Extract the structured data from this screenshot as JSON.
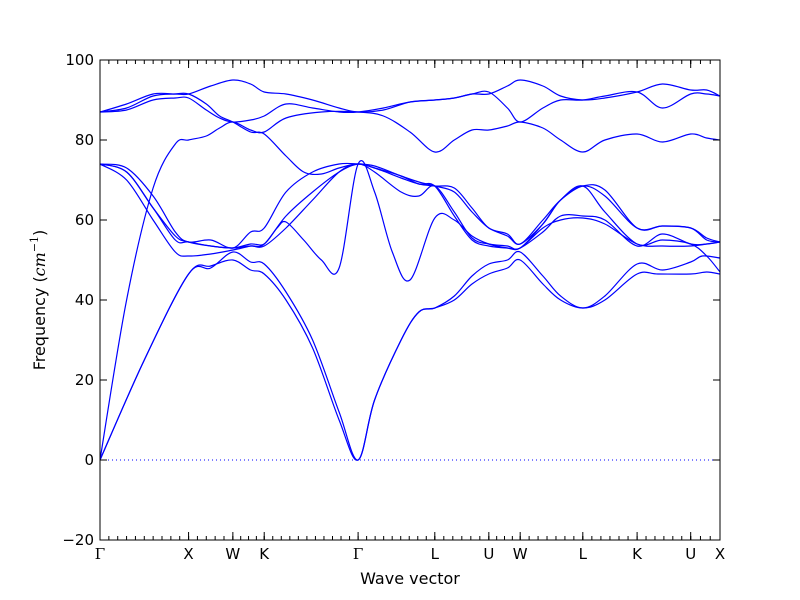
{
  "chart_data": {
    "type": "line",
    "title": "",
    "xlabel": "Wave vector",
    "ylabel": "Frequency",
    "ylabel_unit": "cm",
    "ylabel_unit_exp": "−1",
    "ylim": [
      -20,
      100
    ],
    "yticks": [
      "−20",
      "0",
      "20",
      "40",
      "60",
      "80",
      "100"
    ],
    "ytick_values": [
      -20,
      0,
      20,
      40,
      60,
      80,
      100
    ],
    "xlim": [
      0,
      7.0
    ],
    "xticks": [
      {
        "label": "Γ",
        "x": 0.0
      },
      {
        "label": "X",
        "x": 1.0
      },
      {
        "label": "W",
        "x": 1.5
      },
      {
        "label": "K",
        "x": 1.854
      },
      {
        "label": "Γ",
        "x": 2.914
      },
      {
        "label": "L",
        "x": 3.78
      },
      {
        "label": "U",
        "x": 4.39
      },
      {
        "label": "W",
        "x": 4.744
      },
      {
        "label": "L",
        "x": 5.451
      },
      {
        "label": "K",
        "x": 6.064
      },
      {
        "label": "U",
        "x": 6.669
      },
      {
        "label": "X",
        "x": 7.0
      }
    ],
    "zero_line": true,
    "line_color": "#0000ff",
    "zero_line_color": "#0000ff",
    "series": [
      {
        "values": [
          [
            0,
            0
          ],
          [
            0.5,
            25
          ],
          [
            1.0,
            46.5
          ],
          [
            1.25,
            48.5
          ],
          [
            1.5,
            50
          ],
          [
            1.7,
            47.5
          ],
          [
            1.854,
            46.5
          ],
          [
            2.1,
            40
          ],
          [
            2.4,
            28
          ],
          [
            2.7,
            10
          ],
          [
            2.914,
            0
          ],
          [
            3.1,
            15
          ],
          [
            3.4,
            30
          ],
          [
            3.6,
            37
          ],
          [
            3.78,
            38
          ],
          [
            4.0,
            40
          ],
          [
            4.2,
            44
          ],
          [
            4.39,
            46.5
          ],
          [
            4.6,
            48
          ],
          [
            4.744,
            50
          ],
          [
            5.0,
            44
          ],
          [
            5.2,
            40
          ],
          [
            5.451,
            38
          ],
          [
            5.7,
            40
          ],
          [
            6.064,
            46.5
          ],
          [
            6.3,
            46.5
          ],
          [
            6.669,
            46.5
          ],
          [
            6.85,
            47
          ],
          [
            7.0,
            46.5
          ]
        ]
      },
      {
        "values": [
          [
            0,
            0
          ],
          [
            0.5,
            25
          ],
          [
            1.0,
            46.5
          ],
          [
            1.25,
            48
          ],
          [
            1.5,
            52
          ],
          [
            1.7,
            49.5
          ],
          [
            1.854,
            49
          ],
          [
            2.1,
            42
          ],
          [
            2.4,
            30
          ],
          [
            2.7,
            12
          ],
          [
            2.914,
            0
          ],
          [
            3.1,
            15
          ],
          [
            3.4,
            30
          ],
          [
            3.6,
            37
          ],
          [
            3.78,
            38
          ],
          [
            4.0,
            41
          ],
          [
            4.2,
            46
          ],
          [
            4.39,
            49
          ],
          [
            4.6,
            50
          ],
          [
            4.744,
            52
          ],
          [
            5.0,
            46
          ],
          [
            5.2,
            41
          ],
          [
            5.451,
            38
          ],
          [
            5.7,
            41
          ],
          [
            6.064,
            49
          ],
          [
            6.35,
            47.5
          ],
          [
            6.669,
            49.5
          ],
          [
            6.8,
            51
          ],
          [
            7.0,
            50.5
          ]
        ]
      },
      {
        "values": [
          [
            0,
            0
          ],
          [
            0.3,
            40
          ],
          [
            0.6,
            68
          ],
          [
            0.85,
            79
          ],
          [
            1.0,
            80
          ],
          [
            1.2,
            81
          ],
          [
            1.35,
            83
          ],
          [
            1.5,
            84.5
          ],
          [
            1.7,
            82.5
          ],
          [
            1.854,
            82
          ],
          [
            2.1,
            85.5
          ],
          [
            2.5,
            87
          ],
          [
            2.914,
            87
          ],
          [
            3.2,
            86
          ],
          [
            3.5,
            82
          ],
          [
            3.78,
            77
          ],
          [
            4.0,
            80
          ],
          [
            4.2,
            82.5
          ],
          [
            4.39,
            82.5
          ],
          [
            4.6,
            83.5
          ],
          [
            4.744,
            84.5
          ],
          [
            5.0,
            83
          ],
          [
            5.2,
            80
          ],
          [
            5.451,
            77
          ],
          [
            5.7,
            80
          ],
          [
            6.064,
            81.5
          ],
          [
            6.35,
            79.5
          ],
          [
            6.669,
            81.5
          ],
          [
            6.85,
            80.5
          ],
          [
            7.0,
            80
          ]
        ]
      },
      {
        "values": [
          [
            0,
            74
          ],
          [
            0.3,
            72
          ],
          [
            0.6,
            63
          ],
          [
            0.85,
            55
          ],
          [
            1.0,
            54.5
          ],
          [
            1.25,
            53.5
          ],
          [
            1.5,
            53
          ],
          [
            1.7,
            53.5
          ],
          [
            1.854,
            53.5
          ],
          [
            2.1,
            58
          ],
          [
            2.4,
            65
          ],
          [
            2.7,
            72
          ],
          [
            2.914,
            74
          ],
          [
            3.1,
            72
          ],
          [
            3.4,
            67
          ],
          [
            3.6,
            66
          ],
          [
            3.78,
            68.5
          ],
          [
            4.0,
            62
          ],
          [
            4.2,
            55.5
          ],
          [
            4.39,
            54
          ],
          [
            4.6,
            53.5
          ],
          [
            4.744,
            53
          ],
          [
            5.0,
            59
          ],
          [
            5.2,
            65
          ],
          [
            5.451,
            68.5
          ],
          [
            5.7,
            62
          ],
          [
            6.064,
            54
          ],
          [
            6.35,
            55
          ],
          [
            6.669,
            54
          ],
          [
            6.85,
            51
          ],
          [
            7.0,
            47
          ]
        ]
      },
      {
        "values": [
          [
            0,
            74
          ],
          [
            0.3,
            70
          ],
          [
            0.6,
            60
          ],
          [
            0.85,
            52
          ],
          [
            1.0,
            51
          ],
          [
            1.25,
            51.5
          ],
          [
            1.5,
            52.5
          ],
          [
            1.7,
            53.5
          ],
          [
            1.854,
            54
          ],
          [
            2.1,
            61
          ],
          [
            2.4,
            67
          ],
          [
            2.7,
            72
          ],
          [
            2.914,
            74
          ],
          [
            3.1,
            73
          ],
          [
            3.4,
            71
          ],
          [
            3.6,
            69
          ],
          [
            3.78,
            68.5
          ],
          [
            4.0,
            61
          ],
          [
            4.2,
            55
          ],
          [
            4.39,
            53.5
          ],
          [
            4.6,
            53
          ],
          [
            4.744,
            53
          ],
          [
            5.0,
            57
          ],
          [
            5.2,
            61
          ],
          [
            5.451,
            61
          ],
          [
            5.7,
            60
          ],
          [
            6.064,
            53.5
          ],
          [
            6.35,
            56.5
          ],
          [
            6.669,
            54
          ],
          [
            6.85,
            54
          ],
          [
            7.0,
            54.5
          ]
        ]
      },
      {
        "values": [
          [
            0,
            74
          ],
          [
            0.3,
            73
          ],
          [
            0.6,
            66
          ],
          [
            0.85,
            57
          ],
          [
            1.0,
            54.5
          ],
          [
            1.25,
            55
          ],
          [
            1.5,
            53
          ],
          [
            1.7,
            57
          ],
          [
            1.854,
            58
          ],
          [
            2.1,
            67
          ],
          [
            2.4,
            72
          ],
          [
            2.7,
            74
          ],
          [
            2.914,
            74
          ],
          [
            3.1,
            73.5
          ],
          [
            3.4,
            71
          ],
          [
            3.6,
            69.5
          ],
          [
            3.78,
            68.5
          ],
          [
            4.0,
            67
          ],
          [
            4.2,
            62
          ],
          [
            4.39,
            58
          ],
          [
            4.6,
            56
          ],
          [
            4.744,
            54
          ],
          [
            5.0,
            59
          ],
          [
            5.2,
            65
          ],
          [
            5.451,
            68.5
          ],
          [
            5.7,
            66
          ],
          [
            6.064,
            58
          ],
          [
            6.35,
            58.5
          ],
          [
            6.669,
            58
          ],
          [
            6.85,
            55.5
          ],
          [
            7.0,
            54.5
          ]
        ]
      },
      {
        "values": [
          [
            0,
            74
          ],
          [
            0.3,
            72
          ],
          [
            0.6,
            63
          ],
          [
            0.85,
            56
          ],
          [
            1.0,
            54.5
          ],
          [
            1.25,
            53.5
          ],
          [
            1.5,
            53
          ],
          [
            1.7,
            54
          ],
          [
            1.854,
            54
          ],
          [
            2.0,
            58
          ],
          [
            2.1,
            59.5
          ],
          [
            2.3,
            55
          ],
          [
            2.5,
            50
          ],
          [
            2.7,
            48
          ],
          [
            2.914,
            74
          ],
          [
            3.1,
            67
          ],
          [
            3.3,
            52
          ],
          [
            3.5,
            45
          ],
          [
            3.78,
            60.5
          ],
          [
            4.0,
            60
          ],
          [
            4.2,
            56
          ],
          [
            4.39,
            54
          ],
          [
            4.6,
            53
          ],
          [
            4.744,
            53
          ],
          [
            5.0,
            58
          ],
          [
            5.2,
            60
          ],
          [
            5.451,
            60.5
          ],
          [
            5.7,
            59
          ],
          [
            6.064,
            54
          ],
          [
            6.35,
            53.5
          ],
          [
            6.669,
            53.5
          ],
          [
            6.85,
            54
          ],
          [
            7.0,
            54.5
          ]
        ]
      },
      {
        "values": [
          [
            0,
            87
          ],
          [
            0.3,
            88
          ],
          [
            0.6,
            91
          ],
          [
            0.85,
            91.5
          ],
          [
            1.0,
            91.5
          ],
          [
            1.2,
            89
          ],
          [
            1.35,
            86
          ],
          [
            1.5,
            84.5
          ],
          [
            1.7,
            82
          ],
          [
            1.854,
            81.5
          ],
          [
            2.1,
            76
          ],
          [
            2.3,
            72
          ],
          [
            2.5,
            71.5
          ],
          [
            2.7,
            73
          ],
          [
            2.914,
            74
          ],
          [
            3.1,
            73
          ],
          [
            3.4,
            70.5
          ],
          [
            3.6,
            69
          ],
          [
            3.78,
            68.5
          ],
          [
            4.0,
            68
          ],
          [
            4.2,
            63
          ],
          [
            4.39,
            58
          ],
          [
            4.6,
            56.5
          ],
          [
            4.744,
            54
          ],
          [
            5.0,
            60
          ],
          [
            5.2,
            65
          ],
          [
            5.451,
            68.5
          ],
          [
            5.7,
            67.5
          ],
          [
            6.064,
            58
          ],
          [
            6.35,
            58.5
          ],
          [
            6.669,
            58
          ],
          [
            6.85,
            55
          ],
          [
            7.0,
            54.5
          ]
        ]
      },
      {
        "values": [
          [
            0,
            87
          ],
          [
            0.3,
            87.5
          ],
          [
            0.6,
            90
          ],
          [
            0.85,
            90.5
          ],
          [
            1.0,
            90.5
          ],
          [
            1.2,
            87.5
          ],
          [
            1.35,
            85.5
          ],
          [
            1.5,
            84.5
          ],
          [
            1.7,
            85
          ],
          [
            1.854,
            86
          ],
          [
            2.1,
            89
          ],
          [
            2.4,
            88
          ],
          [
            2.7,
            87
          ],
          [
            2.914,
            87
          ],
          [
            3.2,
            88
          ],
          [
            3.5,
            89.5
          ],
          [
            3.78,
            90
          ],
          [
            4.0,
            90.5
          ],
          [
            4.2,
            91.5
          ],
          [
            4.39,
            92
          ],
          [
            4.6,
            88
          ],
          [
            4.744,
            84.5
          ],
          [
            5.0,
            88
          ],
          [
            5.2,
            90
          ],
          [
            5.451,
            90
          ],
          [
            5.7,
            91
          ],
          [
            6.064,
            92
          ],
          [
            6.35,
            88
          ],
          [
            6.669,
            91.5
          ],
          [
            6.85,
            91.5
          ],
          [
            7.0,
            91
          ]
        ]
      },
      {
        "values": [
          [
            0,
            87
          ],
          [
            0.3,
            89
          ],
          [
            0.6,
            91.5
          ],
          [
            0.85,
            91.5
          ],
          [
            1.0,
            91.5
          ],
          [
            1.25,
            93.5
          ],
          [
            1.5,
            95
          ],
          [
            1.7,
            94
          ],
          [
            1.854,
            92
          ],
          [
            2.1,
            91.5
          ],
          [
            2.4,
            90
          ],
          [
            2.7,
            88
          ],
          [
            2.914,
            87
          ],
          [
            3.2,
            87.5
          ],
          [
            3.5,
            89.5
          ],
          [
            3.78,
            90
          ],
          [
            4.0,
            90.5
          ],
          [
            4.2,
            91.5
          ],
          [
            4.39,
            91.5
          ],
          [
            4.6,
            93.5
          ],
          [
            4.744,
            95
          ],
          [
            5.0,
            93.5
          ],
          [
            5.2,
            91
          ],
          [
            5.451,
            90
          ],
          [
            5.7,
            90.5
          ],
          [
            6.064,
            92
          ],
          [
            6.35,
            94
          ],
          [
            6.669,
            92.5
          ],
          [
            6.85,
            92.5
          ],
          [
            7.0,
            91
          ]
        ]
      }
    ]
  }
}
